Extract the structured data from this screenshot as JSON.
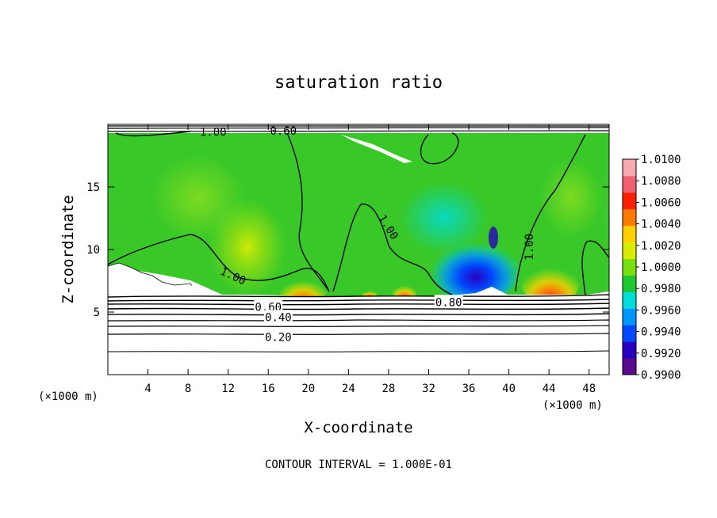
{
  "chart_data": {
    "type": "heatmap",
    "title": "saturation ratio",
    "xlabel": "X-coordinate",
    "ylabel": "Z-coordinate",
    "x_unit": "(×1000 m)",
    "z_unit": "(×1000 m)",
    "footer": "CONTOUR INTERVAL = 1.000E-01",
    "xlim": [
      0,
      50
    ],
    "ylim": [
      0,
      20
    ],
    "x_ticks": [
      4,
      8,
      12,
      16,
      20,
      24,
      28,
      32,
      36,
      40,
      44,
      48
    ],
    "x_tick_labels": [
      "4",
      "8",
      "12",
      "16",
      "20",
      "24",
      "28",
      "32",
      "36",
      "40",
      "44",
      "48"
    ],
    "y_ticks": [
      5,
      10,
      15
    ],
    "y_tick_labels": [
      "5",
      "10",
      "15"
    ],
    "colorbar": {
      "min": 0.99,
      "max": 1.01,
      "labels": [
        "1.0100",
        "1.0080",
        "1.0060",
        "1.0040",
        "1.0020",
        "1.0000",
        "0.9980",
        "0.9960",
        "0.9940",
        "0.9920",
        "0.9900"
      ],
      "colors": [
        "#5a0a8c",
        "#2a00c0",
        "#0048ff",
        "#0098ff",
        "#00dcd8",
        "#20c830",
        "#78e010",
        "#d8ec00",
        "#ffd000",
        "#ff7a00",
        "#ff2000",
        "#f06070",
        "#f8a8b0"
      ]
    },
    "contour_labels": [
      {
        "text": "1.00",
        "x": 10.5,
        "z": 19.4
      },
      {
        "text": "0.60",
        "x": 17.5,
        "z": 19.5
      },
      {
        "text": "1.00",
        "x": 12.5,
        "z": 7.9,
        "angle": 25
      },
      {
        "text": "1.00",
        "x": 28.0,
        "z": 11.8,
        "angle": 58
      },
      {
        "text": "1.00",
        "x": 42.0,
        "z": 10.2,
        "angle": -90
      },
      {
        "text": "0.80",
        "x": 34.0,
        "z": 5.8
      },
      {
        "text": "0.60",
        "x": 16.0,
        "z": 5.4
      },
      {
        "text": "0.40",
        "x": 17.0,
        "z": 4.6
      },
      {
        "text": "0.20",
        "x": 17.0,
        "z": 3.0
      }
    ]
  }
}
